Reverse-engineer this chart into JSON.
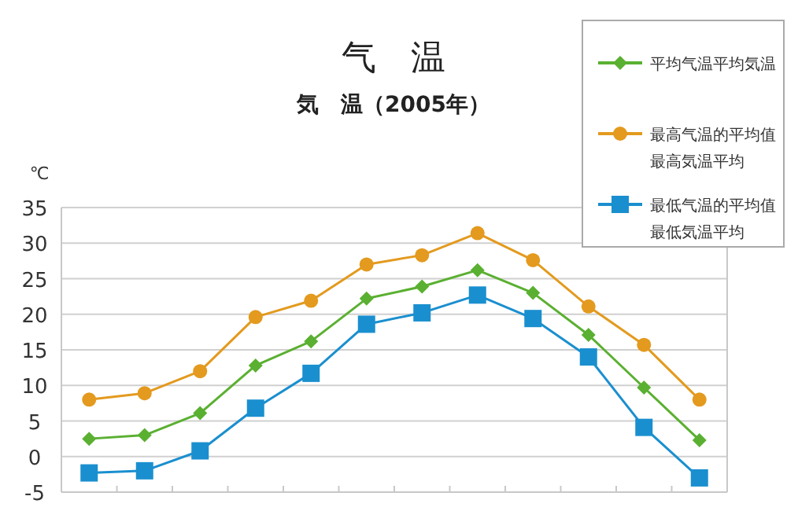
{
  "chart_data": {
    "type": "line",
    "title": "气　温",
    "subtitle": "気　温（2005年）",
    "ylabel": "℃",
    "categories": [
      null,
      null,
      null,
      null,
      null,
      null,
      null,
      null,
      null,
      null,
      null,
      null
    ],
    "ylim": [
      -5,
      35
    ],
    "yticks": [
      -5,
      0,
      5,
      10,
      15,
      20,
      25,
      30,
      35
    ],
    "grid": "y",
    "legend": "top right",
    "series": [
      {
        "name": "平均气温平均気温",
        "color": "#5ab031",
        "marker": "diamond",
        "values": [
          2.5,
          3.0,
          6.1,
          12.8,
          16.2,
          22.2,
          23.9,
          26.2,
          23.0,
          17.1,
          9.7,
          2.3
        ]
      },
      {
        "name": "最高气温的平均值最高気温平均",
        "color": "#e39a1e",
        "marker": "circle",
        "values": [
          8.0,
          8.9,
          12.0,
          19.6,
          21.9,
          27.0,
          28.3,
          31.4,
          27.6,
          21.1,
          15.7,
          8.0
        ]
      },
      {
        "name": "最低气温的平均值最低気温平均",
        "color": "#1a8fcf",
        "marker": "square",
        "values": [
          -2.3,
          -2.0,
          0.8,
          6.8,
          11.7,
          18.6,
          20.2,
          22.7,
          19.4,
          14.0,
          4.1,
          -3.0
        ]
      }
    ]
  }
}
